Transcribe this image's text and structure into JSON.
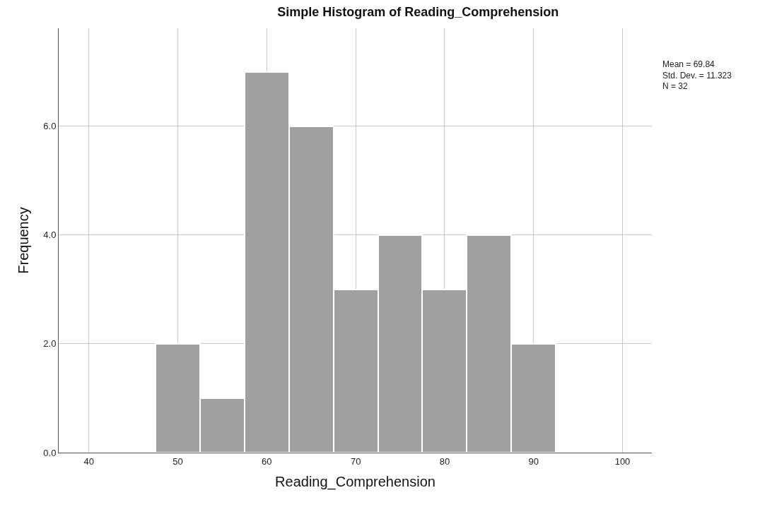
{
  "chart_data": {
    "type": "histogram",
    "title": "Simple Histogram of Reading_Comprehension",
    "xlabel": "Reading_Comprehension",
    "ylabel": "Frequency",
    "bins": [
      47.5,
      52.5,
      57.5,
      62.5,
      67.5,
      72.5,
      77.5,
      82.5,
      87.5,
      92.5
    ],
    "values": [
      2,
      1,
      7,
      6,
      3,
      4,
      3,
      4,
      2
    ],
    "color": "#a0a0a0",
    "xlim": [
      36.6,
      103.3
    ],
    "xticks": [
      40,
      50,
      60,
      70,
      80,
      90,
      100
    ],
    "ylim": [
      0,
      7.8
    ],
    "yticks": [
      {
        "value": 0,
        "label": "0.0"
      },
      {
        "value": 2,
        "label": "2.0"
      },
      {
        "value": 4,
        "label": "4.0"
      },
      {
        "value": 6,
        "label": "6.0"
      }
    ],
    "grid": true,
    "annotations": [
      "Mean = 69.84",
      "Std. Dev. = 11.323",
      "N = 32"
    ]
  }
}
